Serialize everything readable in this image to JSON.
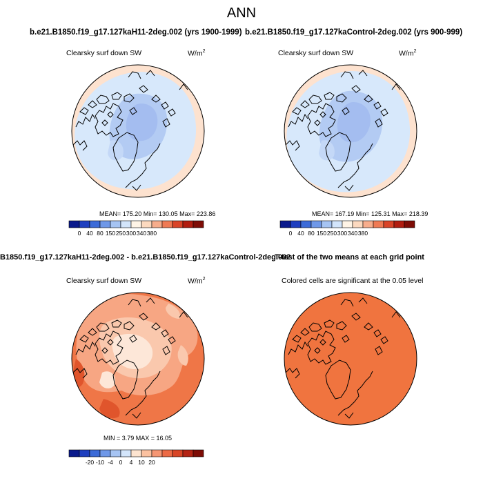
{
  "title": "ANN",
  "panels": [
    {
      "case_title": "b.e21.B1850.f19_g17.127kaH11-2deg.002 (yrs 1900-1999)",
      "variable_label": "Clearsky surf down SW",
      "units_base": "W/m",
      "units_exp": "2",
      "stats": "MEAN= 175.20  Min= 130.05  Max= 223.86",
      "colorbar_ticks": [
        "0",
        "40",
        "80",
        "150",
        "250",
        "300",
        "340",
        "380"
      ]
    },
    {
      "case_title": "b.e21.B1850.f19_g17.127kaControl-2deg.002 (yrs 900-999)",
      "variable_label": "Clearsky surf down SW",
      "units_base": "W/m",
      "units_exp": "2",
      "stats": "MEAN= 167.19  Min= 125.31  Max= 218.39",
      "colorbar_ticks": [
        "0",
        "40",
        "80",
        "150",
        "250",
        "300",
        "340",
        "380"
      ]
    },
    {
      "case_title": "B1850.f19_g17.127kaH11-2deg.002 - b.e21.B1850.f19_g17.127kaControl-2deg.002",
      "variable_label": "Clearsky surf down SW",
      "units_base": "W/m",
      "units_exp": "2",
      "stats": "MIN =   3.79 MAX =  16.05",
      "colorbar_ticks": [
        "-20",
        "-10",
        "-4",
        "0",
        "4",
        "10",
        "20"
      ]
    },
    {
      "case_title": "T-test of the two means at each grid point",
      "variable_label": "Colored cells are significant at the 0.05 level"
    }
  ],
  "colors": {
    "abs_scale": [
      "#0a1a8c",
      "#1f3fbf",
      "#3c6bd8",
      "#6f98e8",
      "#a6c4f3",
      "#d3e5fb",
      "#fff4e6",
      "#fcd9bf",
      "#f7ad8c",
      "#ef7a54",
      "#d94428",
      "#b11d10",
      "#7e0c06"
    ],
    "diff_scale": [
      "#0a1a8c",
      "#1f3fbf",
      "#3c6bd8",
      "#6f98e8",
      "#a6c4f3",
      "#d3e5fb",
      "#fde4d0",
      "#fbc1a0",
      "#f59673",
      "#ec6a45",
      "#d84526",
      "#b42414",
      "#7e0c06"
    ],
    "mean_outer": "#fde2cf",
    "mean_mid": "#d7e8fb",
    "mean_core": "#b3cbf3",
    "mean_core_dark": "#a4bdf0",
    "diff_high": "#ef7647",
    "diff_mid": "#f7a683",
    "diff_low": "#fac8ad",
    "diff_min": "#fde7d8",
    "diff_dark": "#e0552c",
    "ttest": "#f0743f",
    "coast": "#000000"
  }
}
